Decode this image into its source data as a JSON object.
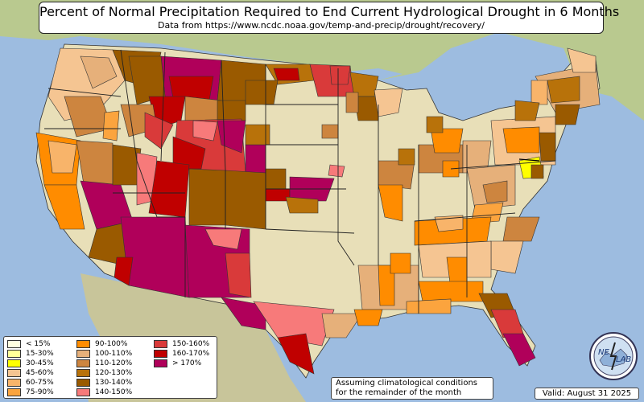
{
  "title": "Percent of Normal Precipitation Required to End Current Hydrological Drought in 6 Months",
  "subtitle": "Data from https://www.ncdc.noaa.gov/temp-and-precip/drought/recovery/",
  "legend": [
    {
      "label": "< 15%",
      "color": "#ffffe0"
    },
    {
      "label": "15-30%",
      "color": "#ffff99"
    },
    {
      "label": "30-45%",
      "color": "#ffff00"
    },
    {
      "label": "45-60%",
      "color": "#f5c592"
    },
    {
      "label": "60-75%",
      "color": "#f8b46a"
    },
    {
      "label": "75-90%",
      "color": "#fba43e"
    },
    {
      "label": "90-100%",
      "color": "#ff8c00"
    },
    {
      "label": "100-110%",
      "color": "#e6b07a"
    },
    {
      "label": "110-120%",
      "color": "#cd853f"
    },
    {
      "label": "120-130%",
      "color": "#b8720a"
    },
    {
      "label": "130-140%",
      "color": "#9a5a00"
    },
    {
      "label": "140-150%",
      "color": "#f77a7a"
    },
    {
      "label": "150-160%",
      "color": "#d93a3a"
    },
    {
      "label": "160-170%",
      "color": "#c00000"
    },
    {
      "label": "> 170%",
      "color": "#b0005a"
    }
  ],
  "note": {
    "line1": "Assuming climatological conditions",
    "line2": "for the remainder of the month"
  },
  "valid": "Valid: August 31 2025",
  "logo": {
    "icon": "nws-lab-logo",
    "text_ne": "NE",
    "text_lab": "LAB"
  },
  "colors": {
    "ocean": "#9dbce0",
    "land": "#e8dfb8",
    "terrain": "#b9c98f"
  }
}
